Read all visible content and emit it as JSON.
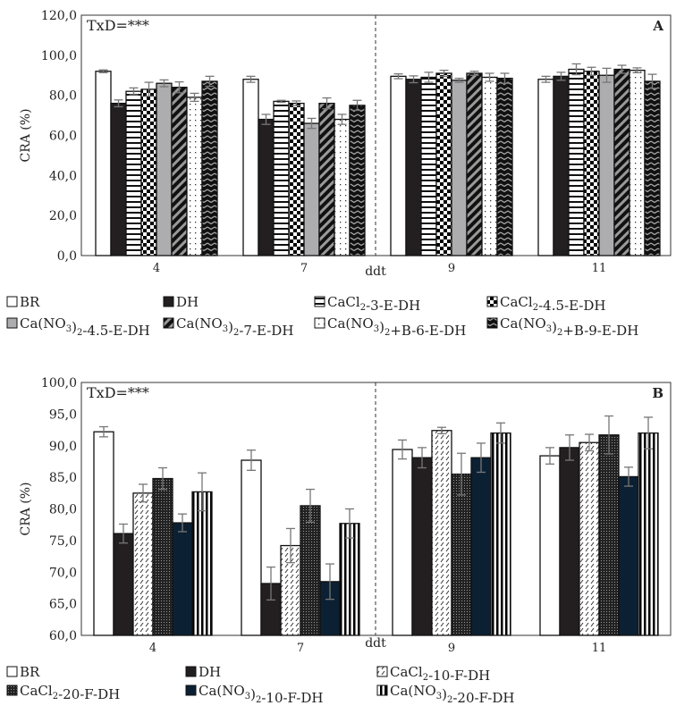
{
  "chart_data": [
    {
      "type": "bar",
      "panel_label": "A",
      "annotation": "TxD=***",
      "xlabel": "ddt",
      "ylabel": "CRA (%)",
      "ylim": [
        0,
        120
      ],
      "yticks": [
        "0,0",
        "20,0",
        "40,0",
        "60,0",
        "80,0",
        "100,0",
        "120,0"
      ],
      "categories": [
        "4",
        "7",
        "9",
        "11"
      ],
      "legend_placement": "bottom",
      "series": [
        {
          "name": "BR",
          "pattern": "white",
          "values": [
            92,
            88,
            89.5,
            88
          ],
          "errors": [
            0.7,
            1.5,
            1.2,
            1.5
          ]
        },
        {
          "name": "DH",
          "pattern": "black",
          "values": [
            76,
            68,
            88,
            89.5
          ],
          "errors": [
            1.7,
            2.5,
            1.7,
            2
          ]
        },
        {
          "name": "CaCl2-3-E-DH",
          "name_sub": "2",
          "pattern": "hlines",
          "values": [
            82,
            77,
            89,
            93
          ],
          "errors": [
            1.7,
            0.5,
            2.5,
            2.7
          ]
        },
        {
          "name": "CaCl2-4.5-E-DH",
          "pattern": "checker",
          "values": [
            83,
            76,
            91,
            92
          ],
          "errors": [
            3.5,
            1.2,
            1.5,
            2
          ]
        },
        {
          "name": "Ca(NO3)2-4.5-E-DH",
          "pattern": "gray",
          "values": [
            86,
            66,
            87.5,
            90
          ],
          "errors": [
            1.7,
            2.5,
            1,
            3.5
          ]
        },
        {
          "name": "Ca(NO3)2-7-E-DH",
          "pattern": "diag",
          "values": [
            84,
            76,
            91,
            93
          ],
          "errors": [
            2.7,
            2.7,
            1,
            2
          ]
        },
        {
          "name": "Ca(NO3)2+B-6-E-DH",
          "pattern": "dots",
          "values": [
            79,
            68,
            89,
            92.5
          ],
          "errors": [
            2,
            2.5,
            2,
            1.2
          ]
        },
        {
          "name": "Ca(NO3)2+B-9-E-DH",
          "pattern": "zigzag",
          "values": [
            87,
            75,
            88.5,
            87
          ],
          "errors": [
            2.5,
            2.5,
            2.5,
            3.5
          ]
        }
      ]
    },
    {
      "type": "bar",
      "panel_label": "B",
      "annotation": "TxD=***",
      "xlabel": "ddt",
      "ylabel": "CRA (%)",
      "ylim": [
        60,
        100
      ],
      "yticks": [
        "60,0",
        "65,0",
        "70,0",
        "75,0",
        "80,0",
        "85,0",
        "90,0",
        "95,0",
        "100,0"
      ],
      "categories": [
        "4",
        "7",
        "9",
        "11"
      ],
      "legend_placement": "bottom",
      "series": [
        {
          "name": "BR",
          "pattern": "white",
          "values": [
            92.2,
            87.7,
            89.4,
            88.4
          ],
          "errors": [
            0.8,
            1.6,
            1.5,
            1.3
          ]
        },
        {
          "name": "DH",
          "pattern": "black",
          "values": [
            76.1,
            68.2,
            88.1,
            89.7
          ],
          "errors": [
            1.5,
            2.6,
            1.6,
            2
          ]
        },
        {
          "name": "CaCl2-10-F-DH",
          "pattern": "hatch",
          "values": [
            82.5,
            74.2,
            92.4,
            90.5
          ],
          "errors": [
            1.4,
            2.7,
            0.5,
            1.3
          ]
        },
        {
          "name": "CaCl2-20-F-DH",
          "pattern": "dense",
          "values": [
            84.8,
            80.5,
            85.5,
            91.7
          ],
          "errors": [
            1.7,
            2.6,
            3.3,
            3
          ]
        },
        {
          "name": "Ca(NO3)2-10-F-DH",
          "pattern": "navy",
          "values": [
            77.8,
            68.5,
            88.1,
            85.1
          ],
          "errors": [
            1.4,
            2.8,
            2.3,
            1.5
          ]
        },
        {
          "name": "Ca(NO3)2-20-F-DH",
          "pattern": "vlines",
          "values": [
            82.7,
            77.7,
            92.0,
            92.0
          ],
          "errors": [
            3,
            2.3,
            1.6,
            2.5
          ]
        }
      ]
    }
  ]
}
